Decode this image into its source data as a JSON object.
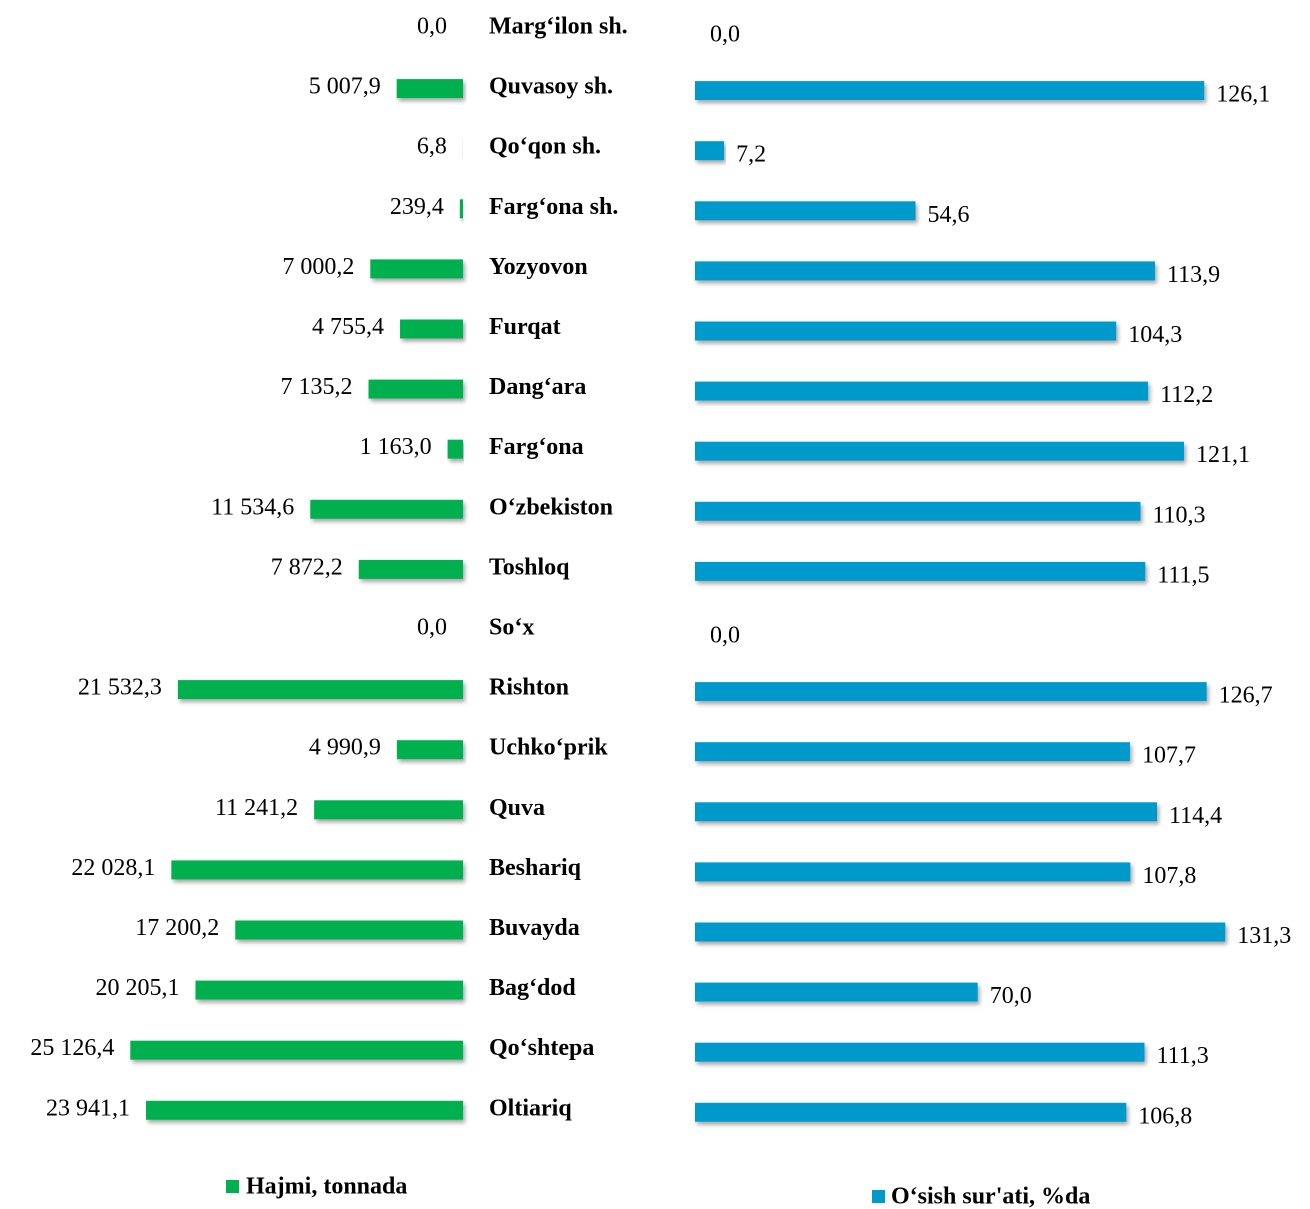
{
  "chart_data": [
    {
      "type": "bar",
      "orientation": "horizontal",
      "x_reversed": true,
      "categories": [
        "Marg‘ilon sh.",
        "Quvasoy sh.",
        "Qo‘qon sh.",
        "Farg‘ona sh.",
        "Yozyovon",
        "Furqat",
        "Dang‘ara",
        "Farg‘ona",
        "O‘zbekiston",
        "Toshloq",
        "So‘x",
        "Rishton",
        "Uchko‘prik",
        "Quva",
        "Beshariq",
        "Buvayda",
        "Bag‘dod",
        "Qo‘shtepa",
        "Oltiariq"
      ],
      "xlim": [
        0,
        25000
      ],
      "series": [
        {
          "name": "Hajmi, tonnada",
          "color": "#00b050",
          "values": [
            0,
            5007.9,
            6.8,
            239.4,
            7000.2,
            4755.4,
            7135.2,
            1163.0,
            11534.6,
            7872.2,
            0,
            21532.3,
            4990.9,
            11241.2,
            22028.1,
            17200.2,
            20205.1,
            25126.4,
            23941.1
          ],
          "value_labels": [
            "0,0",
            "5 007,9",
            "6,8",
            "239,4",
            "7 000,2",
            "4 755,4",
            "7 135,2",
            "1 163,0",
            "11 534,6",
            "7 872,2",
            "0,0",
            "21 532,3",
            "4 990,9",
            "11 241,2",
            "22 028,1",
            "17 200,2",
            "20 205,1",
            "25 126,4",
            "23 941,1"
          ]
        }
      ]
    },
    {
      "type": "bar",
      "orientation": "horizontal",
      "x_reversed": false,
      "xlim": [
        0,
        130
      ],
      "series": [
        {
          "name": "O‘sish sur'ati, %da",
          "color": "#0099cc",
          "values": [
            0,
            126.1,
            7.2,
            54.6,
            113.9,
            104.3,
            112.2,
            121.1,
            110.3,
            111.5,
            0,
            126.7,
            107.7,
            114.4,
            107.8,
            131.3,
            70.0,
            111.3,
            106.8
          ],
          "value_labels": [
            "0,0",
            "126,1",
            "7,2",
            "54,6",
            "113,9",
            "104,3",
            "112,2",
            "121,1",
            "110,3",
            "111,5",
            "0,0",
            "126,7",
            "107,7",
            "114,4",
            "107,8",
            "131,3",
            "70,0",
            "111,3",
            "106,8"
          ]
        }
      ]
    }
  ]
}
